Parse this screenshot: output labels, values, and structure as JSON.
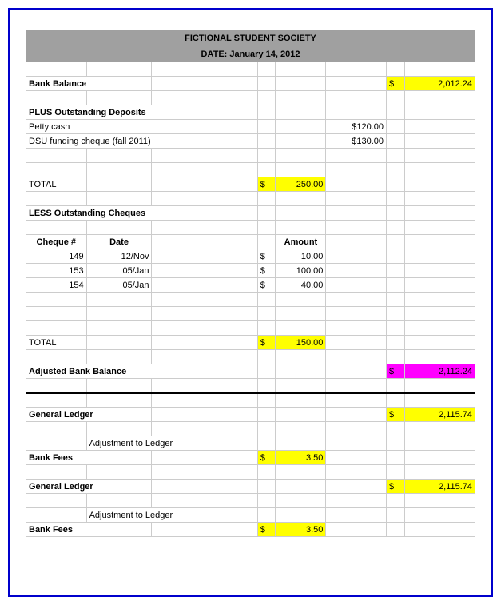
{
  "header": {
    "title": "FICTIONAL STUDENT SOCIETY",
    "date_label": "DATE: January 14, 2012"
  },
  "bank_balance": {
    "label": "Bank Balance",
    "currency": "$",
    "value": "2,012.24"
  },
  "deposits": {
    "heading": "PLUS Outstanding Deposits",
    "rows": [
      {
        "label": "Petty cash",
        "value": "$120.00"
      },
      {
        "label": "DSU funding cheque (fall 2011)",
        "value": "$130.00"
      }
    ],
    "total_label": "TOTAL",
    "total_currency": "$",
    "total_value": "250.00"
  },
  "cheques": {
    "heading": "LESS Outstanding Cheques",
    "col_cheque": "Cheque #",
    "col_date": "Date",
    "col_amount": "Amount",
    "rows": [
      {
        "num": "149",
        "date": "12/Nov",
        "cur": "$",
        "amt": "10.00"
      },
      {
        "num": "153",
        "date": "05/Jan",
        "cur": "$",
        "amt": "100.00"
      },
      {
        "num": "154",
        "date": "05/Jan",
        "cur": "$",
        "amt": "40.00"
      }
    ],
    "total_label": "TOTAL",
    "total_currency": "$",
    "total_value": "150.00"
  },
  "adjusted": {
    "label": "Adjusted Bank Balance",
    "currency": "$",
    "value": "2,112.24"
  },
  "ledger1": {
    "label": "General Ledger",
    "currency": "$",
    "value": "2,115.74",
    "adjust_label": "Adjustment to Ledger",
    "fees_label": "Bank Fees",
    "fees_currency": "$",
    "fees_value": "3.50"
  },
  "ledger2": {
    "label": "General Ledger",
    "currency": "$",
    "value": "2,115.74",
    "adjust_label": "Adjustment to Ledger",
    "fees_label": "Bank Fees",
    "fees_currency": "$",
    "fees_value": "3.50"
  },
  "colors": {
    "border": "#0000cc",
    "header_bg": "#a0a0a0",
    "yellow": "#ffff00",
    "magenta": "#ff00ff",
    "grid": "#cccccc"
  }
}
